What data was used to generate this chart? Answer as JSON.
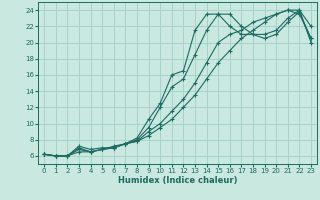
{
  "xlabel": "Humidex (Indice chaleur)",
  "background_color": "#c8e8e0",
  "grid_color": "#a8d0cc",
  "line_color": "#1a6b60",
  "xlim": [
    -0.5,
    23.5
  ],
  "ylim": [
    5.0,
    25.0
  ],
  "xticks": [
    0,
    1,
    2,
    3,
    4,
    5,
    6,
    7,
    8,
    9,
    10,
    11,
    12,
    13,
    14,
    15,
    16,
    17,
    18,
    19,
    20,
    21,
    22,
    23
  ],
  "yticks": [
    6,
    8,
    10,
    12,
    14,
    16,
    18,
    20,
    22,
    24
  ],
  "lines": [
    {
      "x": [
        0,
        1,
        2,
        3,
        4,
        5,
        6,
        7,
        8,
        9,
        10,
        11,
        12,
        13,
        14,
        15,
        16,
        17,
        18,
        19,
        20,
        21,
        22,
        23
      ],
      "y": [
        6.2,
        6.0,
        6.0,
        7.0,
        6.5,
        6.8,
        7.2,
        7.5,
        8.0,
        9.5,
        12.0,
        14.5,
        15.5,
        18.5,
        21.5,
        23.5,
        23.5,
        22.0,
        21.0,
        21.0,
        21.5,
        23.0,
        24.0,
        22.0
      ]
    },
    {
      "x": [
        0,
        1,
        2,
        3,
        4,
        5,
        6,
        7,
        8,
        9,
        10,
        11,
        12,
        13,
        14,
        15,
        16,
        17,
        18,
        19,
        20,
        21,
        22,
        23
      ],
      "y": [
        6.2,
        6.0,
        6.0,
        7.2,
        6.8,
        7.0,
        7.0,
        7.5,
        8.2,
        10.5,
        12.5,
        16.0,
        16.5,
        21.5,
        23.5,
        23.5,
        22.0,
        21.0,
        21.0,
        20.5,
        21.0,
        22.5,
        23.8,
        20.5
      ]
    },
    {
      "x": [
        0,
        1,
        2,
        3,
        4,
        5,
        6,
        7,
        8,
        9,
        10,
        11,
        12,
        13,
        14,
        15,
        16,
        17,
        18,
        19,
        20,
        21,
        22,
        23
      ],
      "y": [
        6.2,
        6.0,
        6.0,
        6.5,
        6.5,
        6.8,
        7.0,
        7.5,
        7.8,
        8.5,
        9.5,
        10.5,
        12.0,
        13.5,
        15.5,
        17.5,
        19.0,
        20.5,
        21.5,
        22.5,
        23.5,
        24.0,
        24.0,
        20.0
      ]
    },
    {
      "x": [
        0,
        1,
        2,
        3,
        4,
        5,
        6,
        7,
        8,
        9,
        10,
        11,
        12,
        13,
        14,
        15,
        16,
        17,
        18,
        19,
        20,
        21,
        22,
        23
      ],
      "y": [
        6.2,
        6.0,
        6.0,
        6.8,
        6.5,
        6.8,
        7.0,
        7.5,
        7.8,
        9.0,
        10.0,
        11.5,
        13.0,
        15.0,
        17.5,
        20.0,
        21.0,
        21.5,
        22.5,
        23.0,
        23.5,
        24.0,
        23.5,
        20.5
      ]
    }
  ]
}
